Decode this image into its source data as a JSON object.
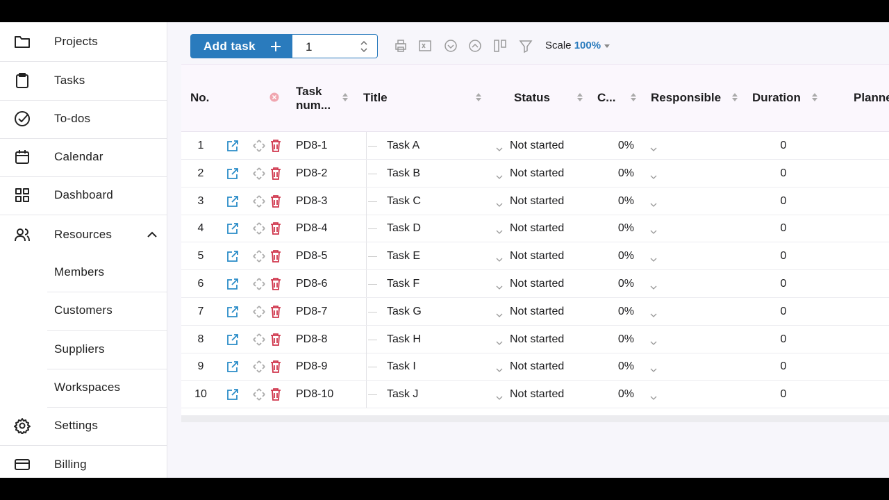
{
  "sidebar": {
    "items": [
      {
        "label": "Projects",
        "icon": "folder"
      },
      {
        "label": "Tasks",
        "icon": "clipboard"
      },
      {
        "label": "To-dos",
        "icon": "check"
      },
      {
        "label": "Calendar",
        "icon": "calendar"
      },
      {
        "label": "Dashboard",
        "icon": "grid"
      },
      {
        "label": "Resources",
        "icon": "users",
        "children": [
          "Members",
          "Customers",
          "Suppliers",
          "Workspaces"
        ]
      },
      {
        "label": "Settings",
        "icon": "gear"
      },
      {
        "label": "Billing",
        "icon": "card"
      }
    ]
  },
  "toolbar": {
    "add_task": "Add task",
    "quantity": "1",
    "scale_label": "Scale",
    "scale_value": "100%"
  },
  "table": {
    "headers": [
      "No.",
      "Task num...",
      "Title",
      "Status",
      "C...",
      "Responsible",
      "Duration",
      "Planne"
    ],
    "rows": [
      [
        "1",
        "PD8-1",
        "Task A",
        "Not started",
        "0%",
        "0"
      ],
      [
        "2",
        "PD8-2",
        "Task B",
        "Not started",
        "0%",
        "0"
      ],
      [
        "3",
        "PD8-3",
        "Task C",
        "Not started",
        "0%",
        "0"
      ],
      [
        "4",
        "PD8-4",
        "Task D",
        "Not started",
        "0%",
        "0"
      ],
      [
        "5",
        "PD8-5",
        "Task E",
        "Not started",
        "0%",
        "0"
      ],
      [
        "6",
        "PD8-6",
        "Task F",
        "Not started",
        "0%",
        "0"
      ],
      [
        "7",
        "PD8-7",
        "Task G",
        "Not started",
        "0%",
        "0"
      ],
      [
        "8",
        "PD8-8",
        "Task H",
        "Not started",
        "0%",
        "0"
      ],
      [
        "9",
        "PD8-9",
        "Task I",
        "Not started",
        "0%",
        "0"
      ],
      [
        "10",
        "PD8-10",
        "Task J",
        "Not started",
        "0%",
        "0"
      ]
    ]
  }
}
